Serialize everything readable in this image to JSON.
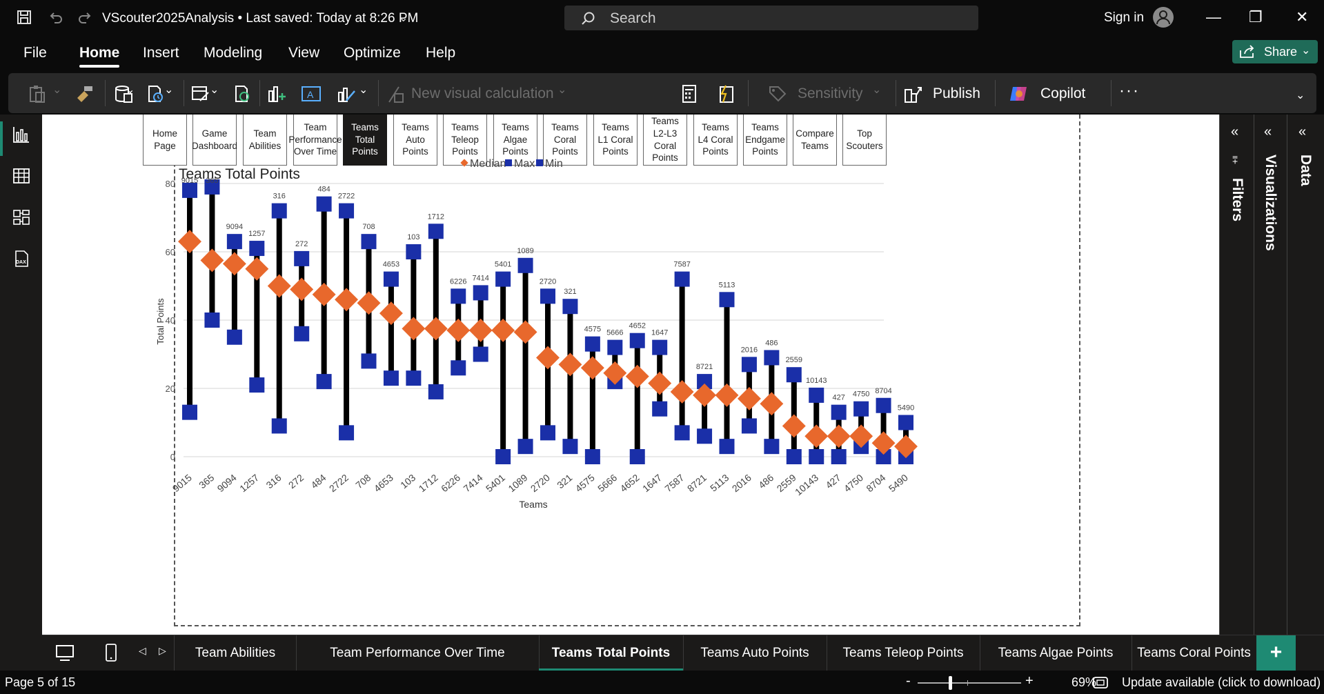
{
  "titlebar": {
    "file_title": "VScouter2025Analysis • Last saved: Today at 8:26 PM",
    "search_placeholder": "Search",
    "sign_in": "Sign in"
  },
  "menu": {
    "items": [
      "File",
      "Home",
      "Insert",
      "Modeling",
      "View",
      "Optimize",
      "Help"
    ],
    "active": "Home",
    "share_label": "Share"
  },
  "ribbon": {
    "new_visual_calc": "New visual calculation",
    "sensitivity": "Sensitivity",
    "publish": "Publish",
    "copilot": "Copilot"
  },
  "nav_buttons": [
    "Home Page",
    "Game Dashboard",
    "Team Abilities",
    "Team Performance Over Time",
    "Teams Total Points",
    "Teams Auto Points",
    "Teams Teleop Points",
    "Teams Algae Points",
    "Teams Coral Points",
    "Teams L1 Coral Points",
    "Teams L2-L3 Coral Points",
    "Teams L4 Coral Points",
    "Teams Endgame Points",
    "Compare Teams",
    "Top Scouters"
  ],
  "panes": {
    "filters": "Filters",
    "visualizations": "Visualizations",
    "data": "Data"
  },
  "page_tabs": [
    "Team Abilities",
    "Team Performance Over Time",
    "Teams Total Points",
    "Teams Auto Points",
    "Teams Teleop Points",
    "Teams Algae Points",
    "Teams Coral Points"
  ],
  "active_tab": "Teams Total Points",
  "status": {
    "page_indicator": "Page 5 of 15",
    "zoom": "69%",
    "zoom_level": 0.69,
    "update": "Update available (click to download)"
  },
  "colors": {
    "median": "#e8682c",
    "max_min": "#1a2fa8",
    "range_line": "#000000",
    "accent": "#1e8a73"
  },
  "chart_data": {
    "type": "scatter",
    "title": "Teams Total Points",
    "xlabel": "Teams",
    "ylabel": "Total Points",
    "ylim": [
      0,
      80
    ],
    "yticks": [
      0,
      20,
      40,
      60,
      80
    ],
    "grid": true,
    "legend_position": "top",
    "legend": [
      "Median",
      "Max",
      "Min"
    ],
    "categories": [
      "9015",
      "365",
      "9094",
      "1257",
      "316",
      "272",
      "484",
      "2722",
      "708",
      "4653",
      "103",
      "1712",
      "6226",
      "7414",
      "5401",
      "1089",
      "2720",
      "321",
      "4575",
      "5666",
      "4652",
      "1647",
      "7587",
      "8721",
      "5113",
      "2016",
      "486",
      "2559",
      "10143",
      "427",
      "4750",
      "8704",
      "5490"
    ],
    "series": [
      {
        "name": "Median",
        "values": [
          63,
          57.5,
          56.5,
          55,
          50,
          49,
          47.5,
          46,
          45,
          42,
          37.5,
          37.5,
          37,
          37,
          37,
          36.5,
          29,
          27,
          26,
          24.5,
          23.5,
          21.5,
          19,
          18,
          18,
          17,
          15.5,
          9,
          6,
          6,
          6,
          4,
          3
        ]
      },
      {
        "name": "Max",
        "values": [
          78,
          79,
          63,
          61,
          72,
          58,
          74,
          72,
          63,
          52,
          60,
          66,
          47,
          48,
          52,
          56,
          47,
          44,
          33,
          32,
          34,
          32,
          52,
          22,
          46,
          27,
          29,
          24,
          18,
          13,
          14,
          15,
          10
        ]
      },
      {
        "name": "Min",
        "values": [
          13,
          40,
          35,
          21,
          9,
          36,
          22,
          7,
          28,
          23,
          23,
          19,
          26,
          30,
          0,
          3,
          7,
          3,
          0,
          22,
          0,
          14,
          7,
          6,
          3,
          9,
          3,
          0,
          0,
          0,
          3,
          0,
          0
        ]
      }
    ]
  }
}
